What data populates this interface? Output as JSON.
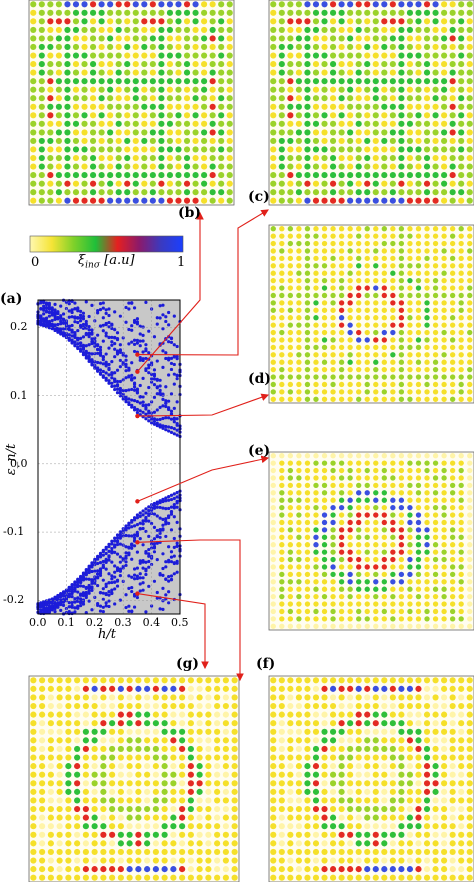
{
  "panel_labels": {
    "a": "(a)",
    "b": "(b)",
    "c": "(c)",
    "d": "(d)",
    "e": "(e)",
    "f": "(f)",
    "g": "(g)"
  },
  "colorbar": {
    "label": "ξ_{inσ} [a.u]",
    "label_main": "ξ",
    "label_sub": "inσ",
    "label_unit": " [a.u]",
    "min_label": "0",
    "max_label": "1",
    "colors": [
      "#fff8b0",
      "#f5e436",
      "#7fd12a",
      "#1fbf3a",
      "#e52020",
      "#8b1a6b",
      "#3a3ac0",
      "#1a3fff"
    ]
  },
  "colors": {
    "spectrum_blue": "#1c1cd9",
    "gap_gray": "#c8c8c8",
    "arrow_red": "#e0201a",
    "grid_line": "#9a9a9a"
  },
  "chart_data": {
    "type": "scatter",
    "title": "",
    "xlabel": "h/t",
    "ylabel": "ε_n/t",
    "xlim": [
      0,
      0.5
    ],
    "ylim": [
      -0.22,
      0.24
    ],
    "x_ticks": [
      "0.0",
      "0.1",
      "0.2",
      "0.3",
      "0.4",
      "0.5"
    ],
    "y_ticks": [
      "0.2",
      "0.1",
      "0.0",
      "-0.1",
      "-0.2"
    ],
    "grid": true,
    "series": [
      {
        "band": "upper edge",
        "x": [
          0.0,
          0.05,
          0.1,
          0.15,
          0.2,
          0.25,
          0.3,
          0.35,
          0.4,
          0.45,
          0.5
        ],
        "y": [
          0.205,
          0.198,
          0.185,
          0.165,
          0.14,
          0.118,
          0.095,
          0.075,
          0.06,
          0.05,
          0.04
        ]
      },
      {
        "band": "lower edge",
        "x": [
          0.0,
          0.05,
          0.1,
          0.15,
          0.2,
          0.25,
          0.3,
          0.35,
          0.4,
          0.45,
          0.5
        ],
        "y": [
          -0.205,
          -0.198,
          -0.185,
          -0.165,
          -0.14,
          -0.118,
          -0.095,
          -0.075,
          -0.06,
          -0.05,
          -0.04
        ]
      }
    ],
    "highlighted_states": [
      {
        "panel": "b",
        "h": 0.35,
        "energy": 0.135
      },
      {
        "panel": "c",
        "h": 0.35,
        "energy": 0.16
      },
      {
        "panel": "d",
        "h": 0.35,
        "energy": 0.07
      },
      {
        "panel": "e",
        "h": 0.35,
        "energy": -0.055
      },
      {
        "panel": "f",
        "h": 0.35,
        "energy": -0.115
      },
      {
        "panel": "g",
        "h": 0.35,
        "energy": -0.19
      }
    ],
    "maps": [
      {
        "panel": "b",
        "pattern": "edge"
      },
      {
        "panel": "c",
        "pattern": "edge"
      },
      {
        "panel": "d",
        "pattern": "ring"
      },
      {
        "panel": "e",
        "pattern": "ring-large"
      },
      {
        "panel": "f",
        "pattern": "rings"
      },
      {
        "panel": "g",
        "pattern": "rings"
      }
    ]
  }
}
